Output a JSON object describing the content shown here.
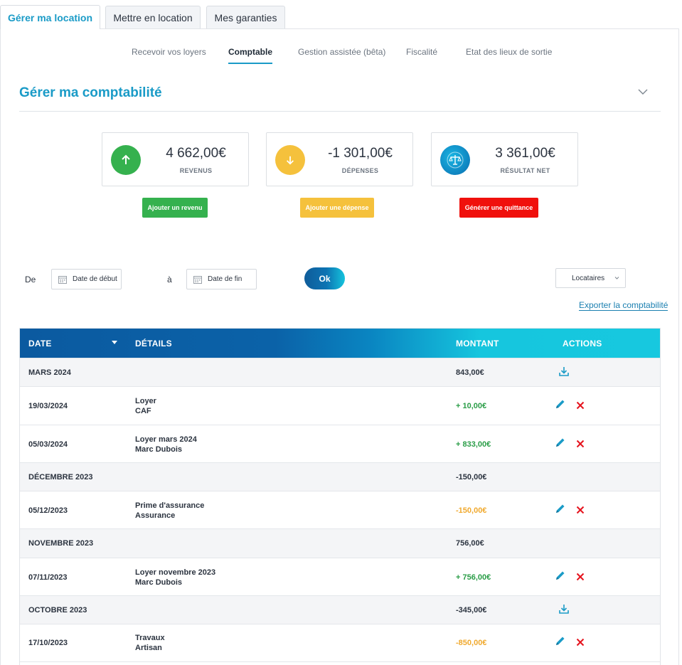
{
  "top_tabs": [
    {
      "label": "Gérer ma location",
      "active": true
    },
    {
      "label": "Mettre en location",
      "active": false
    },
    {
      "label": "Mes garanties",
      "active": false
    }
  ],
  "sub_nav": [
    {
      "label": "Recevoir vos loyers",
      "active": false
    },
    {
      "label": "Comptable",
      "active": true
    },
    {
      "label": "Gestion assistée (bêta)",
      "active": false
    },
    {
      "label": "Fiscalité",
      "active": false
    },
    {
      "label": "Etat des lieux de sortie",
      "active": false
    }
  ],
  "section": {
    "title": "Gérer ma comptabilité",
    "collapse_icon": "chevron-down-icon"
  },
  "summary": {
    "revenus": {
      "amount": "4 662,00€",
      "label": "REVENUS",
      "icon": "arrow-up-icon",
      "color": "#35b14e"
    },
    "depenses": {
      "amount": "-1 301,00€",
      "label": "DÉPENSES",
      "icon": "arrow-down-icon",
      "color": "#f5c13c"
    },
    "resultat": {
      "amount": "3 361,00€",
      "label": "RÉSULTAT NET",
      "icon": "scale-icon",
      "color": "#0f8fc9"
    }
  },
  "actions": {
    "add_revenue": "Ajouter un revenu",
    "add_expense": "Ajouter une dépense",
    "generate_receipt": "Générer une quittance"
  },
  "filters": {
    "from_label": "De",
    "start_placeholder": "Date de début",
    "to_label": "à",
    "end_placeholder": "Date de fin",
    "ok_label": "Ok",
    "tenants_select": "Locataires",
    "export_link": "Exporter la comptabilité"
  },
  "table": {
    "headers": {
      "date": "DATE",
      "details": "DÉTAILS",
      "amount": "MONTANT",
      "actions": "ACTIONS"
    },
    "rows": [
      {
        "type": "group",
        "date": "MARS 2024",
        "amount": "843,00€",
        "download": true
      },
      {
        "type": "entry",
        "date": "19/03/2024",
        "detail1": "Loyer",
        "detail2": "CAF",
        "amount": "+ 10,00€",
        "sign": "pos"
      },
      {
        "type": "entry",
        "date": "05/03/2024",
        "detail1": "Loyer mars 2024",
        "detail2": "Marc Dubois",
        "amount": "+ 833,00€",
        "sign": "pos"
      },
      {
        "type": "group",
        "date": "DÉCEMBRE 2023",
        "amount": "-150,00€",
        "download": false
      },
      {
        "type": "entry",
        "date": "05/12/2023",
        "detail1": "Prime d'assurance",
        "detail2": "Assurance",
        "amount": "-150,00€",
        "sign": "neg"
      },
      {
        "type": "group",
        "date": "NOVEMBRE 2023",
        "amount": "756,00€",
        "download": false
      },
      {
        "type": "entry",
        "date": "07/11/2023",
        "detail1": "Loyer novembre 2023",
        "detail2": "Marc Dubois",
        "amount": "+ 756,00€",
        "sign": "pos"
      },
      {
        "type": "group",
        "date": "OCTOBRE 2023",
        "amount": "-345,00€",
        "download": true
      },
      {
        "type": "entry",
        "date": "17/10/2023",
        "detail1": "Travaux",
        "detail2": "Artisan",
        "amount": "-850,00€",
        "sign": "neg"
      }
    ]
  }
}
